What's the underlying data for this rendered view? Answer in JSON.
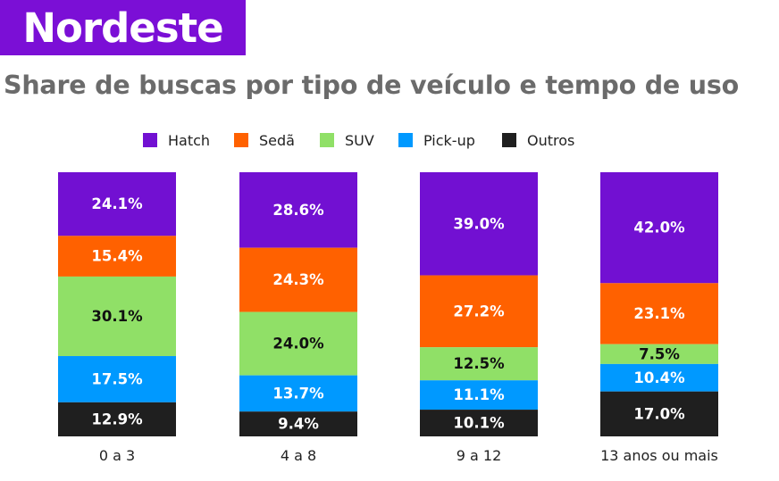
{
  "header": {
    "title": "Nordeste",
    "subtitle": "Share de buscas por tipo de veículo e tempo de uso"
  },
  "colors": {
    "brand": "#7b0fd6",
    "Hatch": "#7210d2",
    "Sedã": "#ff6100",
    "SUV": "#90e067",
    "Pick-up": "#0099ff",
    "Outros": "#1f1f1f"
  },
  "chart_data": {
    "type": "bar",
    "stacked": true,
    "categories": [
      "0 a 3",
      "4 a 8",
      "9 a 12",
      "13 anos ou mais"
    ],
    "series": [
      {
        "name": "Hatch",
        "values": [
          24.1,
          28.6,
          39.0,
          42.0
        ],
        "labels": [
          "24.1%",
          "28.6%",
          "39.0%",
          "42.0%"
        ]
      },
      {
        "name": "Sedã",
        "values": [
          15.4,
          24.3,
          27.2,
          23.1
        ],
        "labels": [
          "15.4%",
          "24.3%",
          "27.2%",
          "23.1%"
        ]
      },
      {
        "name": "SUV",
        "values": [
          30.1,
          24.0,
          12.5,
          7.5
        ],
        "labels": [
          "30.1%",
          "24.0%",
          "12.5%",
          "7.5%"
        ]
      },
      {
        "name": "Pick-up",
        "values": [
          17.5,
          13.7,
          11.1,
          10.4
        ],
        "labels": [
          "17.5%",
          "13.7%",
          "11.1%",
          "10.4%"
        ]
      },
      {
        "name": "Outros",
        "values": [
          12.9,
          9.4,
          10.1,
          17.0
        ],
        "labels": [
          "12.9%",
          "9.4%",
          "10.1%",
          "17.0%"
        ]
      }
    ],
    "ylim": [
      0,
      100
    ],
    "legend_position": "top",
    "grid": false
  }
}
